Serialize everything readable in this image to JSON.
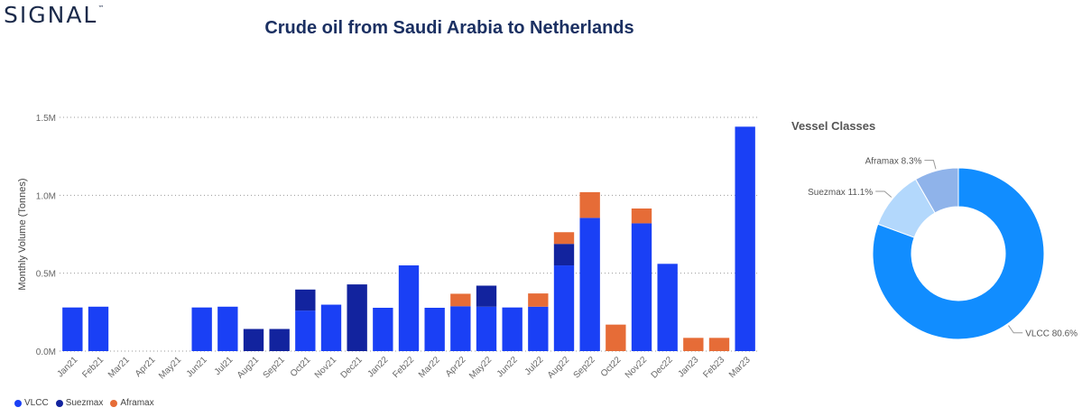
{
  "logo": {
    "text": "SIGNAL",
    "mark": "™"
  },
  "title": "Crude oil from Saudi Arabia to Netherlands",
  "colors": {
    "VLCC": "#1a40f5",
    "Suezmax": "#12239e",
    "Aframax": "#e66c37",
    "grid": "#9a9a9a",
    "axis": "#666666"
  },
  "chart_data": [
    {
      "type": "bar",
      "stacked": true,
      "ylabel": "Monthly Volume (Tonnes)",
      "ylim": [
        0,
        1500000
      ],
      "yticks": [
        {
          "value": 0,
          "label": "0.0M"
        },
        {
          "value": 500000,
          "label": "0.5M"
        },
        {
          "value": 1000000,
          "label": "1.0M"
        },
        {
          "value": 1500000,
          "label": "1.5M"
        }
      ],
      "grid": true,
      "legend_position": "bottom-left",
      "categories": [
        "Jan21",
        "Feb21",
        "Mar21",
        "Apr21",
        "May21",
        "Jun21",
        "Jul21",
        "Aug21",
        "Sep21",
        "Oct21",
        "Nov21",
        "Dec21",
        "Jan22",
        "Feb22",
        "Mar22",
        "Apr22",
        "May22",
        "Jun22",
        "Jul22",
        "Aug22",
        "Sep22",
        "Oct22",
        "Nov22",
        "Dec22",
        "Jan23",
        "Feb23",
        "Mar23"
      ],
      "series": [
        {
          "name": "VLCC",
          "color": "#1a40f5",
          "values": [
            280000,
            285000,
            0,
            0,
            0,
            280000,
            285000,
            0,
            0,
            260000,
            298000,
            0,
            278000,
            550000,
            278000,
            288000,
            285000,
            280000,
            285000,
            550000,
            855000,
            0,
            820000,
            560000,
            0,
            0,
            1440000
          ]
        },
        {
          "name": "Suezmax",
          "color": "#12239e",
          "values": [
            0,
            0,
            0,
            0,
            0,
            0,
            0,
            142000,
            142000,
            135000,
            0,
            428000,
            0,
            0,
            0,
            0,
            135000,
            0,
            0,
            138000,
            0,
            0,
            0,
            0,
            0,
            0,
            0
          ]
        },
        {
          "name": "Aframax",
          "color": "#e66c37",
          "values": [
            0,
            0,
            0,
            0,
            0,
            0,
            0,
            0,
            0,
            0,
            0,
            0,
            0,
            0,
            0,
            80000,
            0,
            0,
            85000,
            75000,
            165000,
            170000,
            95000,
            0,
            85000,
            85000,
            0
          ]
        }
      ]
    },
    {
      "type": "pie",
      "donut": true,
      "title": "Vessel Classes",
      "slices": [
        {
          "name": "VLCC",
          "value": 80.6,
          "label": "VLCC 80.6%",
          "color": "#118dff"
        },
        {
          "name": "Suezmax",
          "value": 11.1,
          "label": "Suezmax 11.1%",
          "color": "#b3d8fc"
        },
        {
          "name": "Aframax",
          "value": 8.3,
          "label": "Aframax 8.3%",
          "color": "#8fb3ea"
        }
      ]
    }
  ],
  "legend": [
    {
      "label": "VLCC",
      "color": "#1a40f5"
    },
    {
      "label": "Suezmax",
      "color": "#12239e"
    },
    {
      "label": "Aframax",
      "color": "#e66c37"
    }
  ]
}
